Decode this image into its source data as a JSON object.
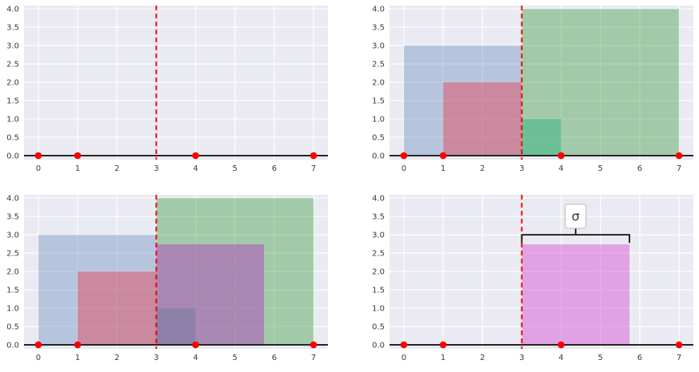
{
  "colors": {
    "figure_background": "#ffffff",
    "axes_background": "#eaeaf2",
    "grid": "#ffffff",
    "tick_label": "#3c3c3c",
    "zero_line": "#1a1a1a",
    "mean_line": "#ee0000",
    "point": "#ff0000",
    "square_blue": "rgba(76,114,176,0.32)",
    "square_red": "rgba(227,66,82,0.45)",
    "square_green": "rgba(70,160,70,0.43)",
    "square_teal": "rgba(42,178,128,0.45)",
    "square_purple": "rgba(174,68,190,0.5)",
    "square_pink": "rgba(215,95,212,0.52)",
    "annotation_line": "#111111",
    "annotation_box_bg": "#ffffff",
    "annotation_box_border": "#cccccc",
    "annotation_text": "#333333"
  },
  "chart_data": [
    {
      "id": "top_left",
      "type": "scatter",
      "x": [
        0,
        1,
        4,
        7
      ],
      "y": [
        0,
        0,
        0,
        0
      ],
      "mean_x": 3,
      "xticks": [
        "0",
        "1",
        "2",
        "3",
        "4",
        "5",
        "6",
        "7"
      ],
      "yticks": [
        "0.0",
        "0.5",
        "1.0",
        "1.5",
        "2.0",
        "2.5",
        "3.0",
        "3.5",
        "4.0"
      ],
      "xlim": [
        -0.365,
        7.365
      ],
      "ylim": [
        -0.11,
        4.09
      ],
      "grid": true,
      "squares": []
    },
    {
      "id": "top_right",
      "type": "scatter",
      "x": [
        0,
        1,
        4,
        7
      ],
      "y": [
        0,
        0,
        0,
        0
      ],
      "mean_x": 3,
      "xticks": [
        "0",
        "1",
        "2",
        "3",
        "4",
        "5",
        "6",
        "7"
      ],
      "yticks": [
        "0.0",
        "0.5",
        "1.0",
        "1.5",
        "2.0",
        "2.5",
        "3.0",
        "3.5",
        "4.0"
      ],
      "xlim": [
        -0.365,
        7.365
      ],
      "ylim": [
        -0.11,
        4.09
      ],
      "grid": true,
      "squares": [
        {
          "x": 0,
          "y": 0,
          "side": 3,
          "fill": "rgba(76,114,176,0.32)"
        },
        {
          "x": 1,
          "y": 0,
          "side": 2,
          "fill": "rgba(227,66,82,0.45)"
        },
        {
          "x": 3,
          "y": 0,
          "side": 4,
          "fill": "rgba(70,160,70,0.43)"
        },
        {
          "x": 3,
          "y": 0,
          "side": 1,
          "fill": "rgba(42,178,128,0.45)"
        }
      ]
    },
    {
      "id": "bottom_left",
      "type": "scatter",
      "x": [
        0,
        1,
        4,
        7
      ],
      "y": [
        0,
        0,
        0,
        0
      ],
      "mean_x": 3,
      "xticks": [
        "0",
        "1",
        "2",
        "3",
        "4",
        "5",
        "6",
        "7"
      ],
      "yticks": [
        "0.0",
        "0.5",
        "1.0",
        "1.5",
        "2.0",
        "2.5",
        "3.0",
        "3.5",
        "4.0"
      ],
      "xlim": [
        -0.365,
        7.365
      ],
      "ylim": [
        -0.11,
        4.09
      ],
      "grid": true,
      "squares": [
        {
          "x": 0,
          "y": 0,
          "side": 3,
          "fill": "rgba(76,114,176,0.32)"
        },
        {
          "x": 1,
          "y": 0,
          "side": 2,
          "fill": "rgba(227,66,82,0.45)"
        },
        {
          "x": 3,
          "y": 0,
          "side": 4,
          "fill": "rgba(70,160,70,0.43)"
        },
        {
          "x": 3,
          "y": 0,
          "side": 1,
          "fill": "rgba(42,178,128,0.45)"
        },
        {
          "x": 3,
          "y": 0,
          "side": 2.7386,
          "fill": "rgba(174,68,190,0.5)"
        }
      ]
    },
    {
      "id": "bottom_right",
      "type": "scatter",
      "x": [
        0,
        1,
        4,
        7
      ],
      "y": [
        0,
        0,
        0,
        0
      ],
      "mean_x": 3,
      "xticks": [
        "0",
        "1",
        "2",
        "3",
        "4",
        "5",
        "6",
        "7"
      ],
      "yticks": [
        "0.0",
        "0.5",
        "1.0",
        "1.5",
        "2.0",
        "2.5",
        "3.0",
        "3.5",
        "4.0"
      ],
      "xlim": [
        -0.365,
        7.365
      ],
      "ylim": [
        -0.11,
        4.09
      ],
      "grid": true,
      "squares": [
        {
          "x": 3,
          "y": 0,
          "side": 2.7386,
          "fill": "rgba(215,95,212,0.52)"
        }
      ],
      "annotation": {
        "text": "σ",
        "span_from": 3,
        "span_to": 5.7386,
        "bracket_y": 3.0,
        "sigma_value": 2.7386
      }
    }
  ]
}
